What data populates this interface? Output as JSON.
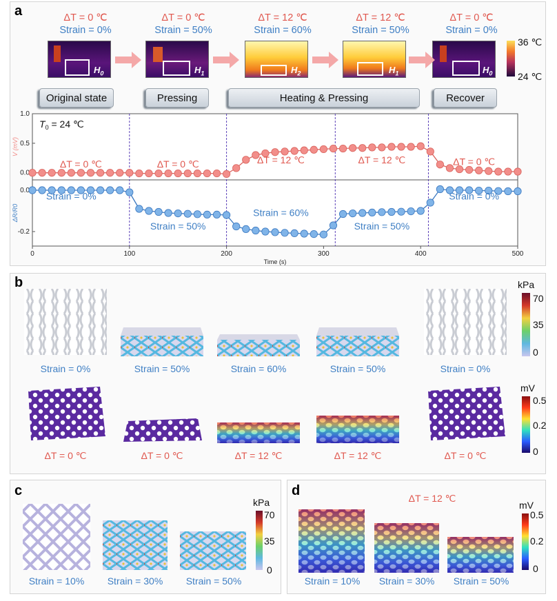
{
  "panel_a": {
    "letter": "a",
    "conditions": [
      {
        "dt": "ΔT = 0 ℃",
        "strain": "Strain = 0%",
        "h": "H",
        "hsub": "0"
      },
      {
        "dt": "ΔT = 0 ℃",
        "strain": "Strain = 50%",
        "h": "H",
        "hsub": "1"
      },
      {
        "dt": "ΔT = 12 ℃",
        "strain": "Strain = 60%",
        "h": "H",
        "hsub": "2"
      },
      {
        "dt": "ΔT = 12 ℃",
        "strain": "Strain = 50%",
        "h": "H",
        "hsub": "1"
      },
      {
        "dt": "ΔT = 0 ℃",
        "strain": "Strain = 0%",
        "h": "H",
        "hsub": "0"
      }
    ],
    "thermal_colorbar": {
      "max": "36 ℃",
      "min": "24 ℃"
    },
    "stages": [
      "Original state",
      "Pressing",
      "Heating & Pressing",
      "Recover"
    ],
    "t0_label": "T",
    "t0_sub": "0",
    "t0_value": " = 24 ℃"
  },
  "chart_data": {
    "type": "line",
    "xlabel": "Time (s)",
    "xlim": [
      0,
      500
    ],
    "x_ticks": [
      "0",
      "100",
      "200",
      "300",
      "400",
      "500"
    ],
    "top": {
      "ylabel": "V (mV)",
      "ylim": [
        -0.12,
        1.0
      ],
      "y_ticks": [
        "0.0",
        "0.5",
        "1.0"
      ],
      "color": "#f28e8a",
      "x": [
        0,
        10,
        20,
        30,
        40,
        50,
        60,
        70,
        80,
        90,
        100,
        110,
        120,
        130,
        140,
        150,
        160,
        170,
        180,
        190,
        200,
        210,
        220,
        230,
        240,
        250,
        260,
        270,
        280,
        290,
        300,
        310,
        320,
        330,
        340,
        350,
        360,
        370,
        380,
        390,
        400,
        410,
        420,
        430,
        440,
        450,
        460,
        470,
        480,
        490,
        500
      ],
      "y": [
        0.0,
        0.0,
        0.0,
        0.0,
        0.0,
        0.0,
        0.0,
        0.0,
        0.0,
        0.0,
        0.0,
        -0.01,
        -0.01,
        -0.01,
        -0.01,
        -0.01,
        -0.01,
        -0.01,
        -0.01,
        -0.01,
        -0.02,
        0.08,
        0.22,
        0.3,
        0.33,
        0.35,
        0.36,
        0.37,
        0.38,
        0.39,
        0.4,
        0.41,
        0.41,
        0.42,
        0.42,
        0.43,
        0.43,
        0.44,
        0.44,
        0.44,
        0.45,
        0.36,
        0.14,
        0.08,
        0.06,
        0.05,
        0.04,
        0.03,
        0.02,
        0.02,
        0.02
      ],
      "annotations": [
        "ΔT = 0 ℃",
        "ΔT = 0 ℃",
        "ΔT = 12 ℃",
        "ΔT = 12 ℃",
        "ΔT = 0 ℃"
      ]
    },
    "bottom": {
      "ylabel": "ΔR/R0",
      "ylim": [
        -0.27,
        0.05
      ],
      "y_ticks": [
        "0.0",
        "-0.2"
      ],
      "color": "#80b4e8",
      "x": [
        0,
        10,
        20,
        30,
        40,
        50,
        60,
        70,
        80,
        90,
        100,
        110,
        120,
        130,
        140,
        150,
        160,
        170,
        180,
        190,
        200,
        210,
        220,
        230,
        240,
        250,
        260,
        270,
        280,
        290,
        300,
        310,
        320,
        330,
        340,
        350,
        360,
        370,
        380,
        390,
        400,
        410,
        420,
        430,
        440,
        450,
        460,
        470,
        480,
        490,
        500
      ],
      "y": [
        0.0,
        0.0,
        0.0,
        0.0,
        0.0,
        0.0,
        0.0,
        0.0,
        0.0,
        0.0,
        -0.01,
        -0.09,
        -0.1,
        -0.105,
        -0.11,
        -0.112,
        -0.114,
        -0.116,
        -0.118,
        -0.118,
        -0.12,
        -0.175,
        -0.188,
        -0.195,
        -0.2,
        -0.203,
        -0.206,
        -0.208,
        -0.21,
        -0.212,
        -0.214,
        -0.17,
        -0.115,
        -0.112,
        -0.11,
        -0.108,
        -0.106,
        -0.105,
        -0.104,
        -0.102,
        -0.1,
        -0.06,
        0.005,
        0.0,
        0.0,
        0.0,
        -0.002,
        -0.002,
        -0.004,
        -0.005,
        -0.005
      ],
      "annotations": [
        "Strain = 0%",
        "Strain = 50%",
        "Strain = 60%",
        "Strain = 50%",
        "Strain = 0%"
      ]
    },
    "stage_lines_x": [
      100,
      200,
      312,
      408
    ]
  },
  "panel_b": {
    "letter": "b",
    "stress_captions": [
      "Strain = 0%",
      "Strain = 50%",
      "Strain = 60%",
      "Strain = 50%",
      "Strain = 0%"
    ],
    "voltage_captions": [
      "ΔT = 0 ℃",
      "ΔT = 0 ℃",
      "ΔT = 12 ℃",
      "ΔT = 12 ℃",
      "ΔT = 0 ℃"
    ],
    "kpa_bar": {
      "unit": "kPa",
      "ticks": [
        "70",
        "35",
        "0"
      ]
    },
    "mv_bar": {
      "unit": "mV",
      "ticks": [
        "0.5",
        "0.2",
        "0"
      ]
    }
  },
  "panel_c": {
    "letter": "c",
    "captions": [
      "Strain = 10%",
      "Strain = 30%",
      "Strain = 50%"
    ],
    "kpa_bar": {
      "unit": "kPa",
      "ticks": [
        "70",
        "35",
        "0"
      ]
    }
  },
  "panel_d": {
    "letter": "d",
    "title": "ΔT = 12 ℃",
    "captions": [
      "Strain = 10%",
      "Strain = 30%",
      "Strain = 50%"
    ],
    "mv_bar": {
      "unit": "mV",
      "ticks": [
        "0.5",
        "0.2",
        "0"
      ]
    }
  },
  "colors": {
    "red_text": "#e0584f",
    "blue_text": "#3f7fc4",
    "top_series": "#f28e8a",
    "bottom_series": "#80b4e8",
    "stage_line": "#5a3fb8"
  }
}
